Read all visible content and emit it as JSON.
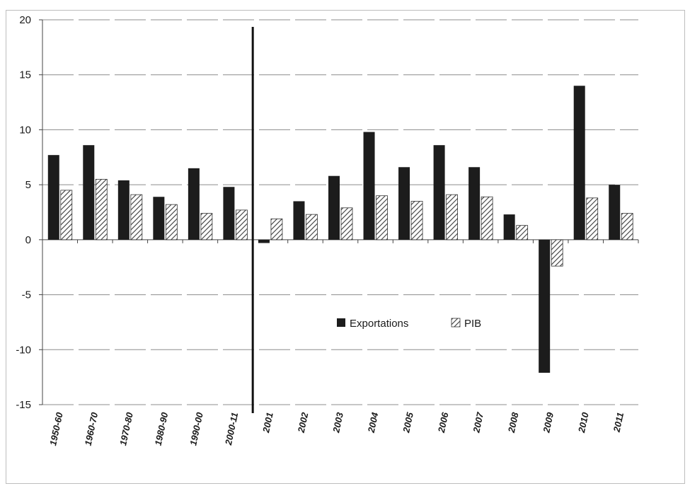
{
  "chart_data": {
    "type": "bar",
    "title": "",
    "xlabel": "",
    "ylabel": "",
    "ylim": [
      -15,
      20
    ],
    "yticks": [
      20,
      15,
      10,
      5,
      0,
      -5,
      -10,
      -15
    ],
    "grid": true,
    "legend_position": "center-right",
    "categories": [
      "1950-60",
      "1960-70",
      "1970-80",
      "1980-90",
      "1990-00",
      "2000-11",
      "2001",
      "2002",
      "2003",
      "2004",
      "2005",
      "2006",
      "2007",
      "2008",
      "2009",
      "2010",
      "2011"
    ],
    "series": [
      {
        "name": "Exportations",
        "color": "#1c1c1c",
        "pattern": "solid",
        "values": [
          7.7,
          8.6,
          5.4,
          3.9,
          6.5,
          4.8,
          -0.3,
          3.5,
          5.8,
          9.8,
          6.6,
          8.6,
          6.6,
          2.3,
          -12.1,
          14.0,
          5.0
        ]
      },
      {
        "name": "PIB",
        "color": "#555555",
        "pattern": "hatched",
        "values": [
          4.5,
          5.5,
          4.1,
          3.2,
          2.4,
          2.7,
          1.9,
          2.3,
          2.9,
          4.0,
          3.5,
          4.1,
          3.9,
          1.3,
          -2.4,
          3.8,
          2.4
        ]
      }
    ],
    "separator_after_category": "2000-11"
  }
}
